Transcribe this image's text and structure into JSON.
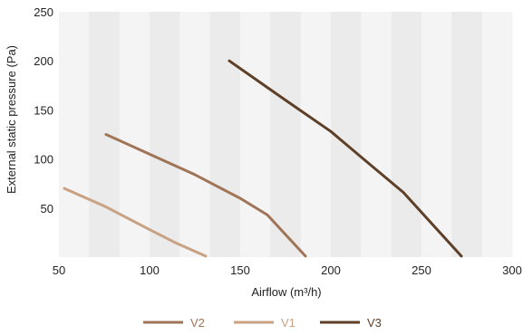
{
  "chart_data": {
    "type": "line",
    "xlabel": "Airflow (m³/h)",
    "ylabel": "External static pressure (Pa)",
    "xlim": [
      50,
      300
    ],
    "ylim": [
      0,
      250
    ],
    "x_ticks": [
      50,
      100,
      150,
      200,
      250,
      300
    ],
    "y_ticks": [
      50,
      100,
      150,
      200,
      250
    ],
    "grid": "alternating vertical bands",
    "legend_position": "bottom",
    "band_colors": [
      "#f4f4f4",
      "#ebebeb"
    ],
    "series": [
      {
        "name": "V2",
        "color": "#a07457",
        "points": [
          [
            76,
            125
          ],
          [
            100,
            105
          ],
          [
            125,
            84
          ],
          [
            150,
            60
          ],
          [
            165,
            43
          ],
          [
            186,
            1
          ]
        ]
      },
      {
        "name": "V1",
        "color": "#c8a283",
        "points": [
          [
            53,
            70
          ],
          [
            75,
            52
          ],
          [
            100,
            28
          ],
          [
            115,
            14
          ],
          [
            131,
            1
          ]
        ]
      },
      {
        "name": "V3",
        "color": "#5e4028",
        "points": [
          [
            144,
            200
          ],
          [
            175,
            160
          ],
          [
            200,
            128
          ],
          [
            218,
            100
          ],
          [
            240,
            66
          ],
          [
            272,
            1
          ]
        ]
      }
    ]
  }
}
